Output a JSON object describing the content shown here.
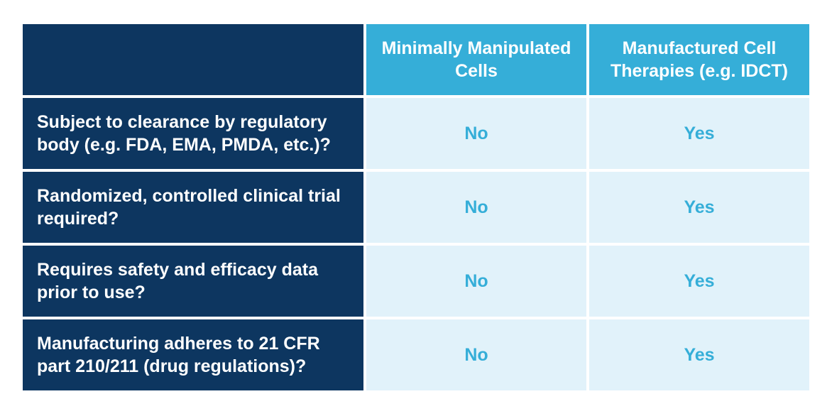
{
  "columns": [
    "Minimally Manipulated Cells",
    "Manufactured Cell Therapies (e.g. IDCT)"
  ],
  "rows": [
    {
      "label": "Subject to clearance by regulatory body (e.g. FDA, EMA, PMDA, etc.)?",
      "values": [
        "No",
        "Yes"
      ]
    },
    {
      "label": "Randomized, controlled clinical trial required?",
      "values": [
        "No",
        "Yes"
      ]
    },
    {
      "label": "Requires safety and efficacy data prior to use?",
      "values": [
        "No",
        "Yes"
      ]
    },
    {
      "label": "Manufacturing adheres to 21 CFR part 210/211 (drug regulations)?",
      "values": [
        "No",
        "Yes"
      ]
    }
  ],
  "colors": {
    "navy": "#0d3660",
    "accent": "#35aed8",
    "light": "#e1f2fa"
  }
}
